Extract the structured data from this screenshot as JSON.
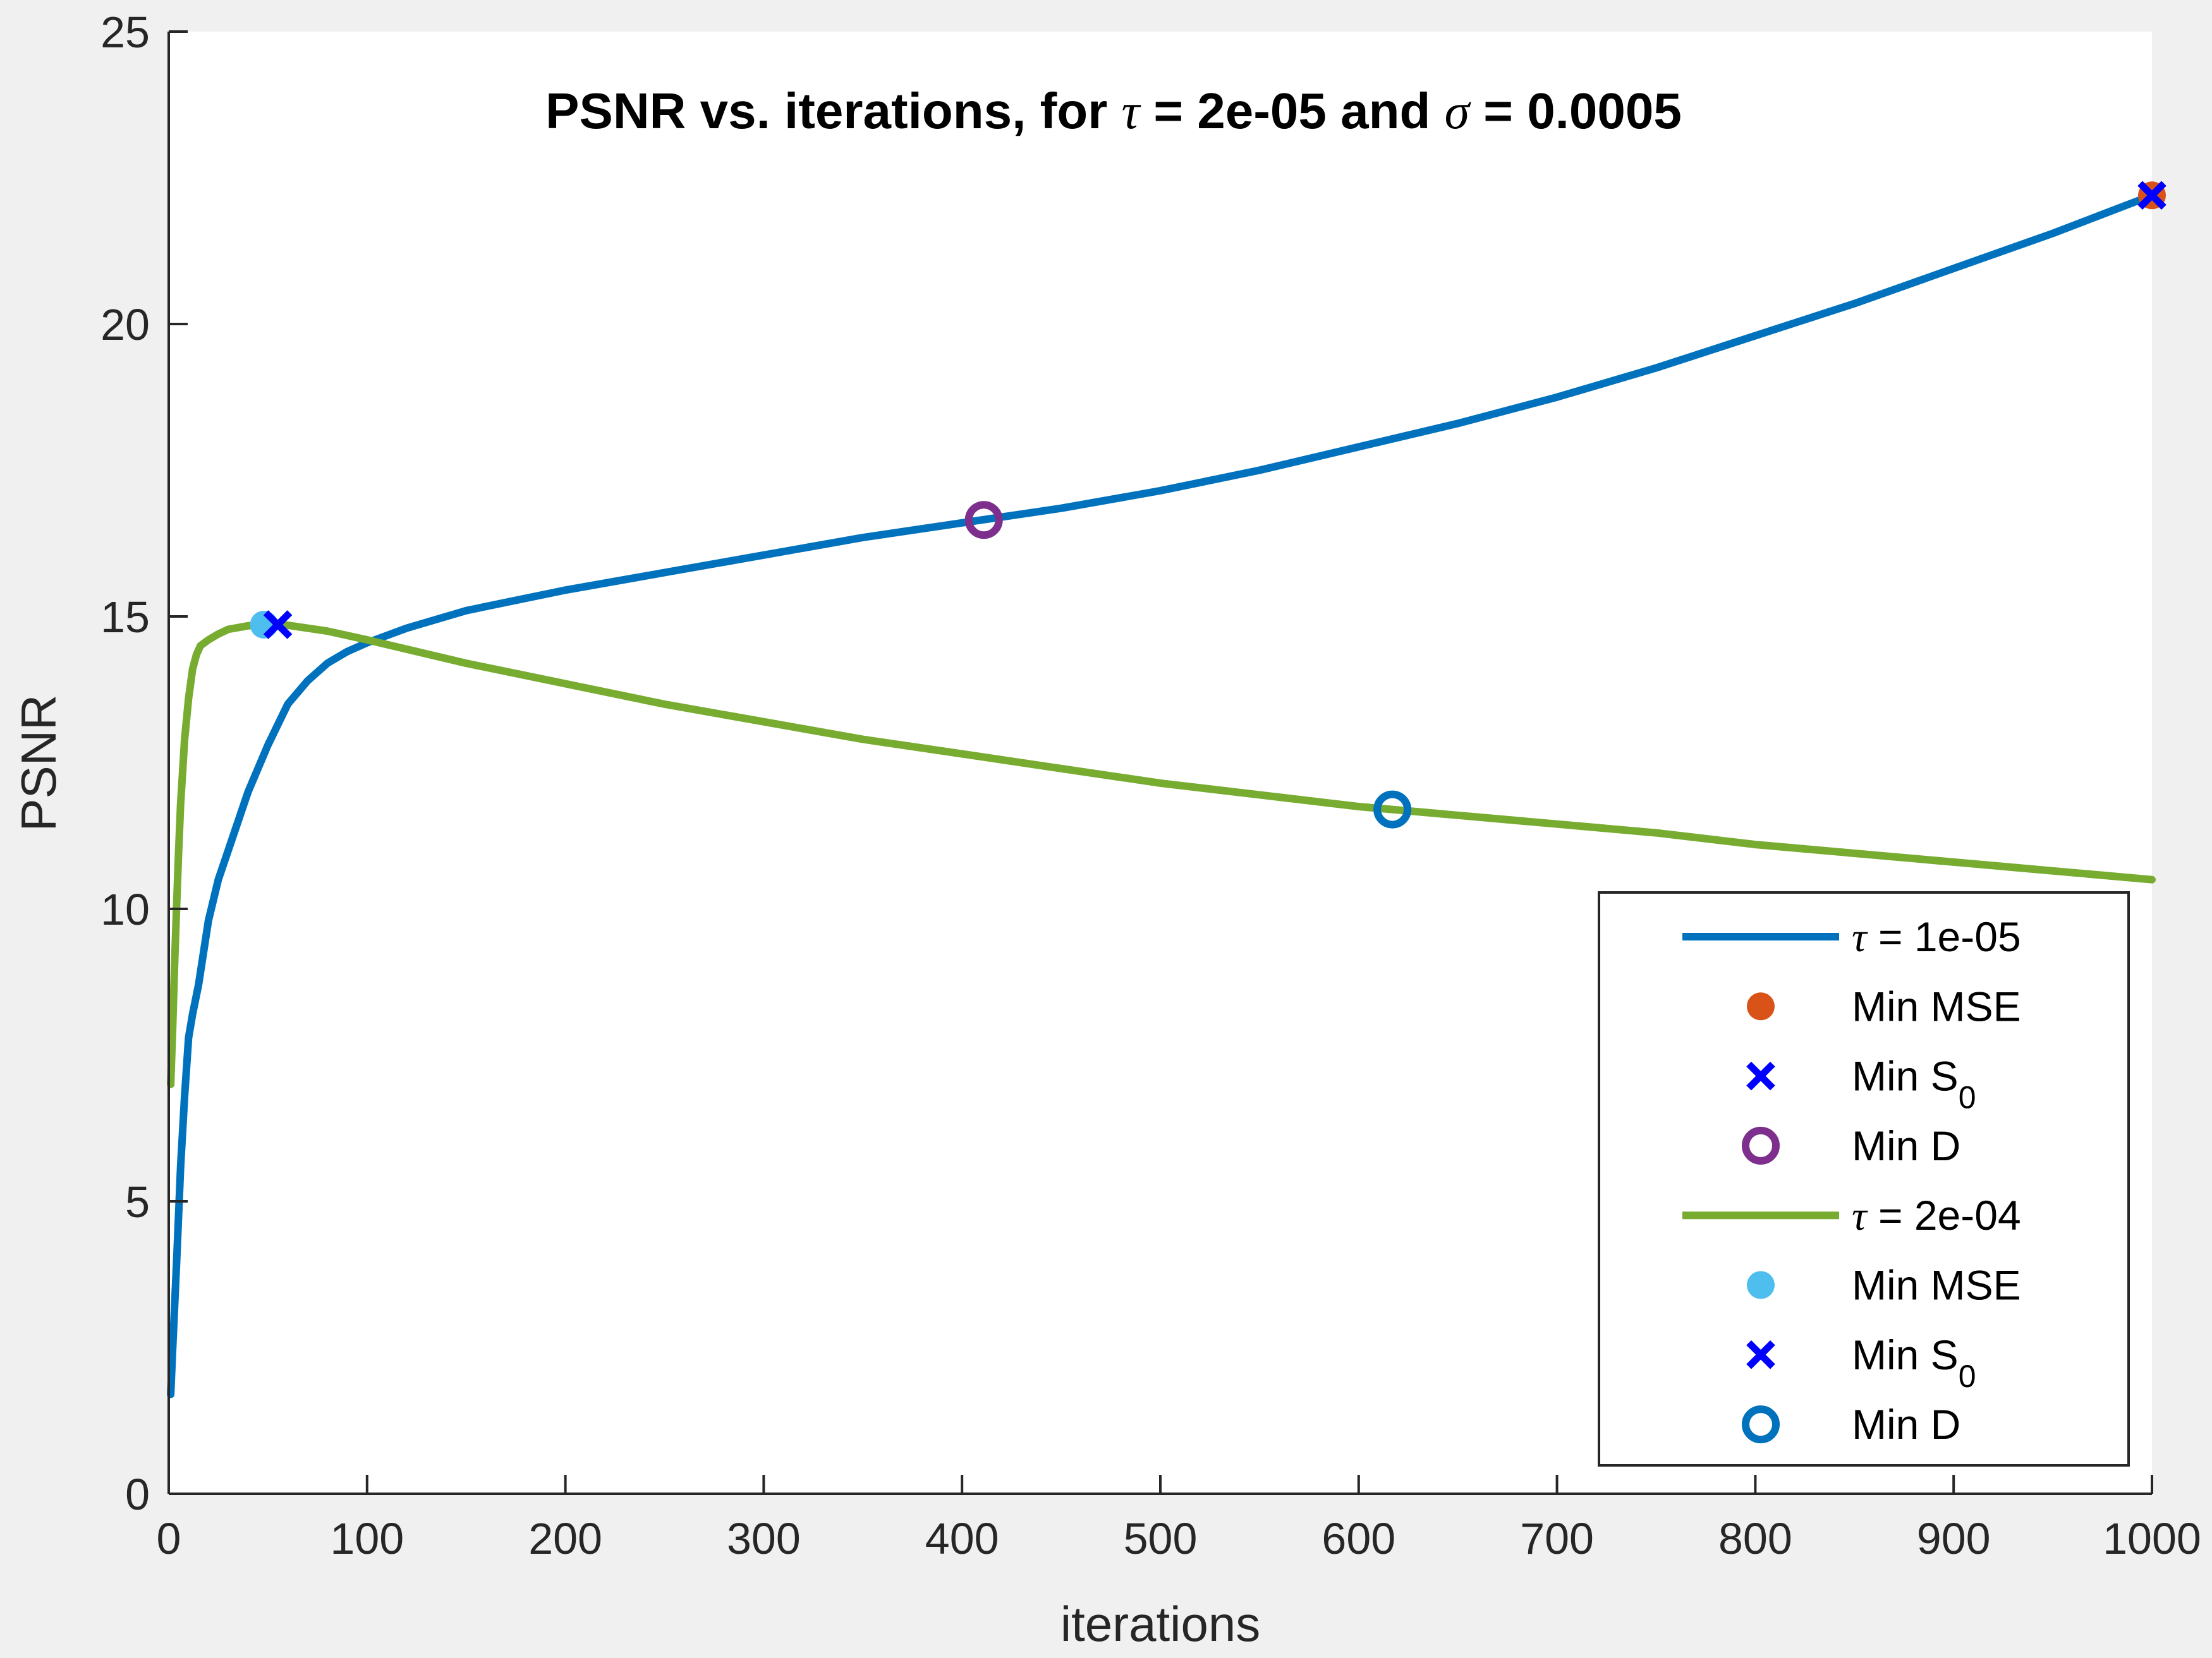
{
  "chart_data": {
    "type": "line",
    "title": {
      "prefix": "PSNR vs. iterations, for ",
      "sym1": "τ",
      "mid": " = 2e-05 and ",
      "sym2": "σ",
      "suffix": " = 0.0005"
    },
    "xlabel": "iterations",
    "ylabel": "PSNR",
    "xlim": [
      0,
      1000
    ],
    "ylim": [
      0,
      25
    ],
    "xticks": [
      0,
      100,
      200,
      300,
      400,
      500,
      600,
      700,
      800,
      900,
      1000
    ],
    "yticks": [
      0,
      5,
      10,
      15,
      20,
      25
    ],
    "xtick_labels": [
      "0",
      "100",
      "200",
      "300",
      "400",
      "500",
      "600",
      "700",
      "800",
      "900",
      "1000"
    ],
    "ytick_labels": [
      "0",
      "5",
      "10",
      "15",
      "20",
      "25"
    ],
    "grid": false,
    "legend_position": "bottom-right",
    "series": [
      {
        "name": "τ = 1e-05",
        "legend_sym": "τ",
        "legend_rest": " = 1e-05",
        "color": "#0072BD",
        "x": [
          1,
          2,
          4,
          6,
          8,
          10,
          12,
          15,
          20,
          25,
          30,
          40,
          50,
          60,
          70,
          80,
          90,
          100,
          120,
          150,
          200,
          250,
          300,
          350,
          400,
          410,
          450,
          500,
          550,
          600,
          650,
          700,
          750,
          800,
          850,
          900,
          950,
          1000
        ],
        "y": [
          1.7,
          2.5,
          4.0,
          5.6,
          6.8,
          7.8,
          8.2,
          8.7,
          9.8,
          10.5,
          11.0,
          12.0,
          12.8,
          13.5,
          13.9,
          14.2,
          14.4,
          14.55,
          14.8,
          15.1,
          15.45,
          15.75,
          16.05,
          16.35,
          16.6,
          16.65,
          16.85,
          17.15,
          17.5,
          17.9,
          18.3,
          18.75,
          19.25,
          19.8,
          20.35,
          20.95,
          21.55,
          22.2
        ]
      },
      {
        "name": "τ = 2e-04",
        "legend_sym": "τ",
        "legend_rest": " = 2e-04",
        "color": "#77AC30",
        "x": [
          1,
          2,
          3,
          4,
          5,
          6,
          8,
          10,
          12,
          14,
          16,
          18,
          20,
          25,
          30,
          40,
          50,
          60,
          80,
          100,
          150,
          200,
          250,
          300,
          350,
          400,
          450,
          500,
          550,
          600,
          617,
          650,
          700,
          750,
          800,
          850,
          900,
          950,
          1000
        ],
        "y": [
          7.0,
          8.0,
          9.1,
          10.1,
          11.0,
          11.8,
          12.9,
          13.6,
          14.1,
          14.35,
          14.5,
          14.55,
          14.6,
          14.7,
          14.78,
          14.84,
          14.86,
          14.85,
          14.75,
          14.6,
          14.2,
          13.85,
          13.5,
          13.2,
          12.9,
          12.65,
          12.4,
          12.15,
          11.95,
          11.75,
          11.7,
          11.6,
          11.45,
          11.3,
          11.1,
          10.95,
          10.8,
          10.65,
          10.5
        ]
      }
    ],
    "markers": [
      {
        "name": "Min MSE",
        "series": "τ = 1e-05",
        "x": 1000,
        "y": 22.2,
        "shape": "dot",
        "color": "#D95319"
      },
      {
        "name": "Min S0",
        "series": "τ = 1e-05",
        "x": 1000,
        "y": 22.2,
        "shape": "x",
        "color": "#0000FF"
      },
      {
        "name": "Min D",
        "series": "τ = 1e-05",
        "x": 411,
        "y": 16.65,
        "shape": "circle",
        "color": "#7E2F8E"
      },
      {
        "name": "Min MSE",
        "series": "τ = 2e-04",
        "x": 48,
        "y": 14.86,
        "shape": "dot",
        "color": "#4DBEEE"
      },
      {
        "name": "Min S0",
        "series": "τ = 2e-04",
        "x": 55,
        "y": 14.86,
        "shape": "x",
        "color": "#0000FF"
      },
      {
        "name": "Min D",
        "series": "τ = 2e-04",
        "x": 617,
        "y": 11.7,
        "shape": "circle",
        "color": "#0072BD"
      }
    ],
    "legend": [
      {
        "kind": "line",
        "color": "#0072BD",
        "sym": "τ",
        "text": " = 1e-05"
      },
      {
        "kind": "dot",
        "color": "#D95319",
        "text": "Min MSE"
      },
      {
        "kind": "x",
        "color": "#0000FF",
        "text": "Min S",
        "sub": "0"
      },
      {
        "kind": "circle",
        "color": "#7E2F8E",
        "text": "Min D"
      },
      {
        "kind": "line",
        "color": "#77AC30",
        "sym": "τ",
        "text": " = 2e-04"
      },
      {
        "kind": "dot",
        "color": "#4DBEEE",
        "text": "Min MSE"
      },
      {
        "kind": "x",
        "color": "#0000FF",
        "text": "Min S",
        "sub": "0"
      },
      {
        "kind": "circle",
        "color": "#0072BD",
        "text": "Min D"
      }
    ]
  }
}
